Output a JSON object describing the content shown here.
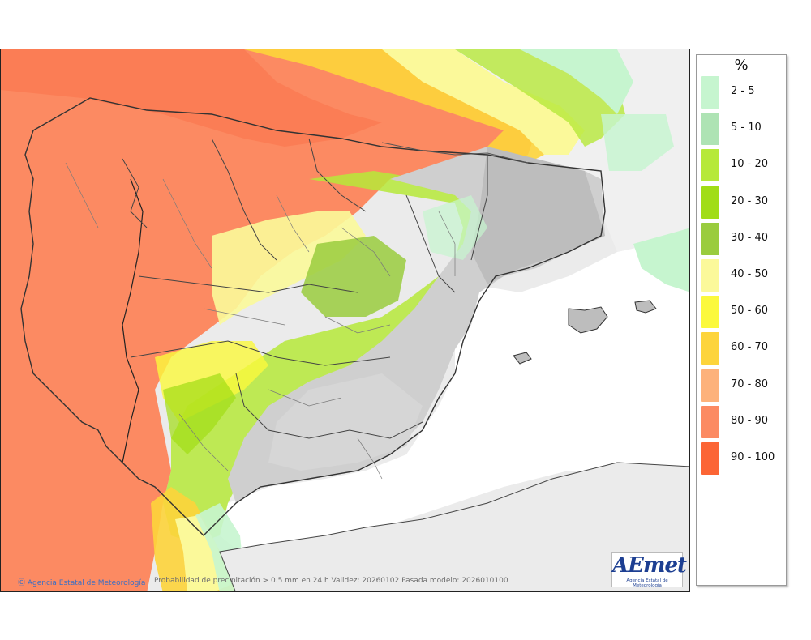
{
  "map": {
    "credit": "Agencia Estatal de Meteorología",
    "info": "Probabilidad de precipitación > 0.5 mm en 24 h Validez: 20260102 Pasada modelo: 2026010100",
    "logo": {
      "text": "AEmet",
      "subtitle": "Agencia Estatal de Meteorología"
    }
  },
  "legend": {
    "unit": "%",
    "items": [
      {
        "label": "2 - 5",
        "color": "#c6f5cf"
      },
      {
        "label": "5 - 10",
        "color": "#aee3b4"
      },
      {
        "label": "10 - 20",
        "color": "#b6e93a"
      },
      {
        "label": "20 - 30",
        "color": "#a1dd16"
      },
      {
        "label": "30 - 40",
        "color": "#9acc3e"
      },
      {
        "label": "40 - 50",
        "color": "#fbf99a"
      },
      {
        "label": "50 - 60",
        "color": "#fbf93c"
      },
      {
        "label": "60 - 70",
        "color": "#fdd43b"
      },
      {
        "label": "70 - 80",
        "color": "#fdb27b"
      },
      {
        "label": "80 - 90",
        "color": "#fc8a62"
      },
      {
        "label": "90 - 100",
        "color": "#fc6535"
      }
    ]
  }
}
